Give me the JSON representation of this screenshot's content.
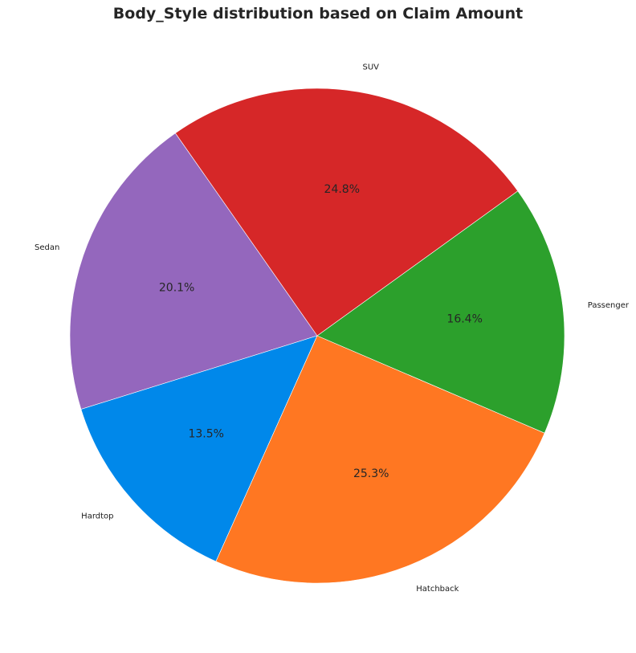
{
  "chart_data": {
    "type": "pie",
    "title": "Body_Style distribution based on Claim Amount",
    "start_angle_deg": 125,
    "direction": "counterclockwise",
    "slices": [
      {
        "label": "Sedan",
        "value": 20.1,
        "pct_label": "20.1%",
        "color": "#9467bd"
      },
      {
        "label": "Hardtop",
        "value": 13.5,
        "pct_label": "13.5%",
        "color": "#0088ea"
      },
      {
        "label": "Hatchback",
        "value": 25.3,
        "pct_label": "25.3%",
        "color": "#ff7722"
      },
      {
        "label": "Passenger",
        "value": 16.4,
        "pct_label": "16.4%",
        "color": "#2ca02c"
      },
      {
        "label": "SUV",
        "value": 24.8,
        "pct_label": "24.8%",
        "color": "#d62728"
      }
    ]
  }
}
